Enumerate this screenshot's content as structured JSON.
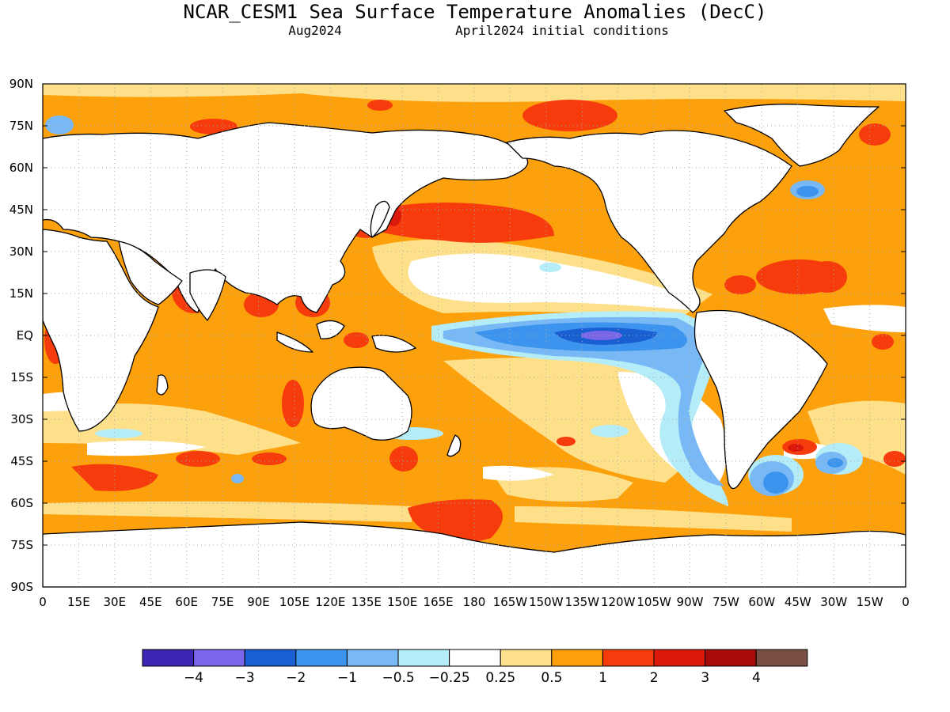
{
  "title": "NCAR_CESM1 Sea Surface Temperature Anomalies (DecC)",
  "subtitle_left": "Aug2024",
  "subtitle_right": "April2024 initial conditions",
  "lat_ticks": [
    "90N",
    "75N",
    "60N",
    "45N",
    "30N",
    "15N",
    "EQ",
    "15S",
    "30S",
    "45S",
    "60S",
    "75S",
    "90S"
  ],
  "lon_ticks": [
    "0",
    "15E",
    "30E",
    "45E",
    "60E",
    "75E",
    "90E",
    "105E",
    "120E",
    "135E",
    "150E",
    "165E",
    "180",
    "165W",
    "150W",
    "135W",
    "120W",
    "105W",
    "90W",
    "75W",
    "60W",
    "45W",
    "30W",
    "15W",
    "0"
  ],
  "colorbar": {
    "colors": [
      "#3d26b4",
      "#7a66e8",
      "#1a5fd2",
      "#3c94ee",
      "#78b8f4",
      "#b4ecf8",
      "#ffffff",
      "#fee08a",
      "#fca00c",
      "#f63c0c",
      "#dc1a0c",
      "#a60a0a",
      "#7a4f43"
    ],
    "labels": [
      "-4",
      "-3",
      "-2",
      "-1",
      "-0.5",
      "-0.25",
      "0.25",
      "0.5",
      "1",
      "2",
      "3",
      "4"
    ]
  },
  "colors": {
    "ocean_base": "#fca00c",
    "land": "#ffffff",
    "coast": "#000000",
    "grid": "#aaaaaa"
  }
}
